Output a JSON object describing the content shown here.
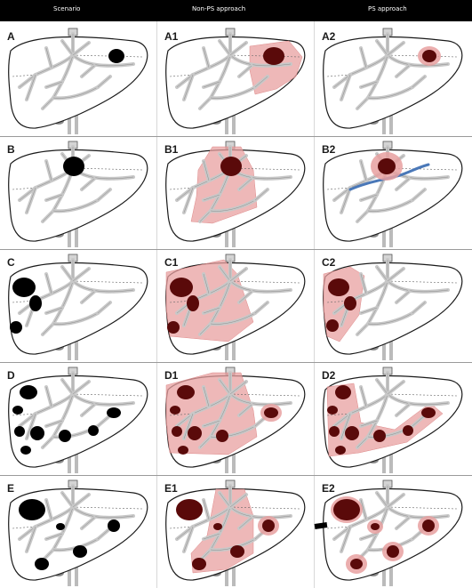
{
  "header": {
    "col1": "Scenario",
    "col2": "Non-PS approach",
    "col3": "PS approach"
  },
  "colors": {
    "header_bg": "#000000",
    "liver_outline": "#1a1a1a",
    "vessel": "#c8c8c8",
    "tumor": "#000000",
    "tumor_resected": "#5a0a0a",
    "resection": "#e8a0a0",
    "preserved_vessel": "#4a78b8"
  },
  "rows": [
    {
      "id": "A",
      "cells": [
        {
          "label": "A",
          "mode": "scenario",
          "tumors": [
            [
              131,
              39,
              9,
              8
            ]
          ],
          "regions": [],
          "halos": [],
          "vessel": false
        },
        {
          "label": "A1",
          "mode": "nonps",
          "tumors": [
            [
              131,
              39,
              12,
              10
            ]
          ],
          "regions": [
            [
              [
                104,
                28
              ],
              [
                148,
                22
              ],
              [
                163,
                40
              ],
              [
                156,
                62
              ],
              [
                134,
                76
              ],
              [
                110,
                82
              ],
              [
                104,
                55
              ]
            ]
          ],
          "halos": [],
          "vessel": false
        },
        {
          "label": "A2",
          "mode": "ps",
          "tumors": [
            [
              129,
              39,
              8,
              7
            ]
          ],
          "regions": [],
          "halos": [
            [
              129,
              39,
              13,
              11
            ]
          ],
          "vessel": false
        }
      ]
    },
    {
      "id": "B",
      "cells": [
        {
          "label": "B",
          "mode": "scenario",
          "tumors": [
            [
              83,
              36,
              12,
              11
            ]
          ],
          "regions": [],
          "halos": [],
          "vessel": false
        },
        {
          "label": "B1",
          "mode": "nonps",
          "tumors": [
            [
              83,
              36,
              12,
              11
            ]
          ],
          "regions": [
            [
              [
                62,
                14
              ],
              [
                94,
                14
              ],
              [
                108,
                40
              ],
              [
                112,
                82
              ],
              [
                62,
                100
              ],
              [
                38,
                98
              ],
              [
                44,
                70
              ],
              [
                46,
                40
              ]
            ]
          ],
          "halos": [],
          "vessel": false
        },
        {
          "label": "B2",
          "mode": "ps",
          "tumors": [
            [
              81,
              36,
              10,
              9
            ]
          ],
          "regions": [],
          "halos": [
            [
              81,
              36,
              18,
              16
            ]
          ],
          "vessel": true
        }
      ]
    },
    {
      "id": "C",
      "cells": [
        {
          "label": "C",
          "mode": "scenario",
          "tumors": [
            [
              27,
              45,
              13,
              11
            ],
            [
              40,
              63,
              7,
              9
            ],
            [
              18,
              90,
              7,
              7
            ]
          ],
          "regions": [],
          "halos": [],
          "vessel": false
        },
        {
          "label": "C1",
          "mode": "nonps",
          "tumors": [
            [
              27,
              45,
              13,
              11
            ],
            [
              40,
              63,
              7,
              9
            ],
            [
              18,
              90,
              7,
              7
            ]
          ],
          "regions": [
            [
              [
                10,
                28
              ],
              [
                75,
                14
              ],
              [
                90,
                30
              ],
              [
                108,
                84
              ],
              [
                80,
                106
              ],
              [
                14,
                100
              ],
              [
                10,
                70
              ]
            ]
          ],
          "halos": [],
          "vessel": false
        },
        {
          "label": "C2",
          "mode": "ps",
          "tumors": [
            [
              27,
              45,
              12,
              10
            ],
            [
              40,
              63,
              7,
              8
            ],
            [
              20,
              88,
              7,
              7
            ]
          ],
          "regions": [
            [
              [
                10,
                30
              ],
              [
                40,
                22
              ],
              [
                56,
                32
              ],
              [
                50,
                76
              ],
              [
                28,
                106
              ],
              [
                14,
                100
              ],
              [
                10,
                70
              ]
            ]
          ],
          "halos": [],
          "vessel": false
        }
      ]
    },
    {
      "id": "D",
      "cells": [
        {
          "label": "D",
          "mode": "scenario",
          "tumors": [
            [
              32,
              36,
              10,
              8
            ],
            [
              20,
              56,
              6,
              5
            ],
            [
              22,
              80,
              6,
              6
            ],
            [
              42,
              82,
              8,
              8
            ],
            [
              29,
              101,
              6,
              5
            ],
            [
              73,
              85,
              7,
              7
            ],
            [
              105,
              79,
              6,
              6
            ],
            [
              128,
              59,
              8,
              6
            ]
          ],
          "regions": [],
          "halos": [],
          "vessel": false
        },
        {
          "label": "D1",
          "mode": "nonps",
          "tumors": [
            [
              32,
              36,
              10,
              8
            ],
            [
              20,
              56,
              6,
              5
            ],
            [
              22,
              80,
              6,
              6
            ],
            [
              42,
              82,
              8,
              8
            ],
            [
              29,
              101,
              6,
              5
            ],
            [
              73,
              85,
              7,
              7
            ],
            [
              128,
              59,
              8,
              6
            ]
          ],
          "regions": [
            [
              [
                10,
                28
              ],
              [
                62,
                14
              ],
              [
                94,
                14
              ],
              [
                108,
                56
              ],
              [
                112,
                86
              ],
              [
                80,
                106
              ],
              [
                14,
                104
              ],
              [
                10,
                70
              ]
            ]
          ],
          "halos": [
            [
              128,
              59,
              12,
              10
            ]
          ],
          "vessel": false
        },
        {
          "label": "D2",
          "mode": "ps",
          "tumors": [
            [
              32,
              36,
              9,
              8
            ],
            [
              20,
              56,
              6,
              5
            ],
            [
              22,
              80,
              6,
              6
            ],
            [
              42,
              82,
              8,
              8
            ],
            [
              29,
              101,
              6,
              5
            ],
            [
              73,
              85,
              7,
              7
            ],
            [
              105,
              79,
              6,
              6
            ],
            [
              128,
              59,
              8,
              6
            ]
          ],
          "regions": [
            [
              [
                14,
                30
              ],
              [
                44,
                26
              ],
              [
                52,
                70
              ],
              [
                90,
                78
              ],
              [
                130,
                48
              ],
              [
                144,
                60
              ],
              [
                104,
                92
              ],
              [
                50,
                104
              ],
              [
                16,
                108
              ]
            ]
          ],
          "halos": [],
          "vessel": false
        }
      ]
    },
    {
      "id": "E",
      "cells": [
        {
          "label": "E",
          "mode": "scenario",
          "tumors": [
            [
              36,
              41,
              15,
              12
            ],
            [
              68,
              60,
              5,
              4
            ],
            [
              128,
              59,
              7,
              7
            ],
            [
              90,
              88,
              8,
              7
            ],
            [
              47,
              102,
              8,
              7
            ]
          ],
          "regions": [],
          "halos": [],
          "vessel": false
        },
        {
          "label": "E1",
          "mode": "nonps",
          "tumors": [
            [
              36,
              41,
              15,
              12
            ],
            [
              68,
              60,
              5,
              4
            ],
            [
              125,
              59,
              7,
              7
            ],
            [
              90,
              88,
              8,
              7
            ],
            [
              47,
              102,
              8,
              7
            ]
          ],
          "regions": [
            [
              [
                66,
                18
              ],
              [
                98,
                18
              ],
              [
                108,
                48
              ],
              [
                108,
                90
              ],
              [
                78,
                108
              ],
              [
                40,
                112
              ],
              [
                38,
                90
              ],
              [
                56,
                70
              ]
            ]
          ],
          "halos": [
            [
              125,
              59,
              12,
              11
            ]
          ],
          "vessel": false
        },
        {
          "label": "E2",
          "mode": "ps",
          "tumors": [
            [
              36,
              41,
              15,
              12
            ],
            [
              68,
              60,
              5,
              4
            ],
            [
              128,
              59,
              7,
              7
            ],
            [
              88,
              88,
              7,
              7
            ],
            [
              47,
              102,
              7,
              6
            ]
          ],
          "regions": [],
          "halos": [
            [
              36,
              41,
              18,
              15
            ],
            [
              68,
              60,
              9,
              8
            ],
            [
              128,
              59,
              12,
              11
            ],
            [
              88,
              88,
              12,
              11
            ],
            [
              47,
              102,
              12,
              11
            ]
          ],
          "vessel": false
        }
      ]
    }
  ]
}
